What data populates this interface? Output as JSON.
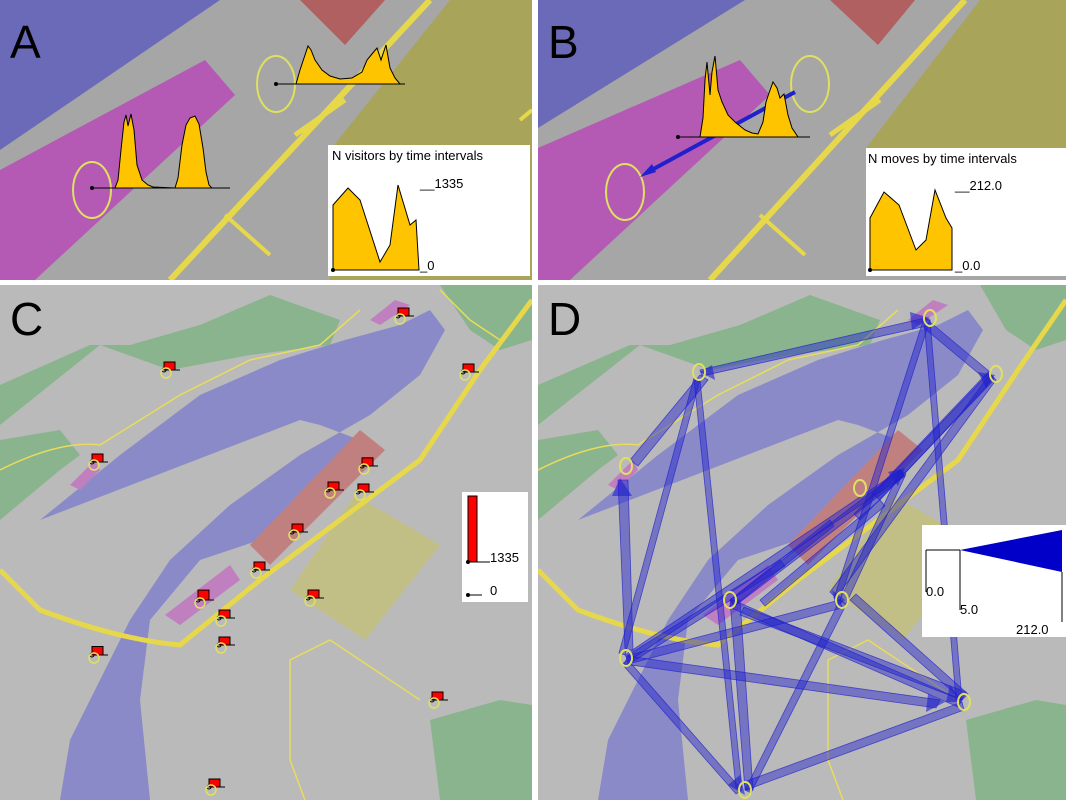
{
  "panels": {
    "a": {
      "label": "A",
      "legend_title": "N visitors by time intervals",
      "legend_max": "__1335",
      "legend_min": "_0"
    },
    "b": {
      "label": "B",
      "legend_title": "N moves by time intervals",
      "legend_max": "__212.0",
      "legend_min": "_0.0"
    },
    "c": {
      "label": "C",
      "legend_max": "1335",
      "legend_min": "0",
      "max_value": 1335,
      "bars": [
        {
          "place": 1,
          "value": 120
        },
        {
          "place": 2,
          "value": 60
        },
        {
          "place": 3,
          "value": 230
        },
        {
          "place": 4,
          "value": 360
        },
        {
          "place": 5,
          "value": 185
        },
        {
          "place": 6,
          "value": 70
        },
        {
          "place": 7,
          "value": 55
        },
        {
          "place": 8,
          "value": 60
        },
        {
          "place": 9,
          "value": 130
        },
        {
          "place": 10,
          "value": 180
        },
        {
          "place": 11,
          "value": 345
        },
        {
          "place": 12,
          "value": 170
        },
        {
          "place": 13,
          "value": 165
        },
        {
          "place": 14,
          "value": 60
        },
        {
          "place": 15,
          "value": 200
        },
        {
          "place": 16,
          "value": 65
        },
        {
          "place": 17,
          "value": 75
        }
      ]
    },
    "d": {
      "label": "D",
      "legend_min": "0.0",
      "legend_mid": "5.0",
      "legend_max": "212.0"
    }
  },
  "colors": {
    "background": "#a6a6a6",
    "water": "#6a6ab8",
    "pink": "#b45ab4",
    "red": "#b06060",
    "olive": "#a8a45a",
    "green": "#86b08a",
    "road": "#e6d84a",
    "histogram": "#ffc400",
    "bar": "#ff0000",
    "arrow": "#2020cc"
  }
}
